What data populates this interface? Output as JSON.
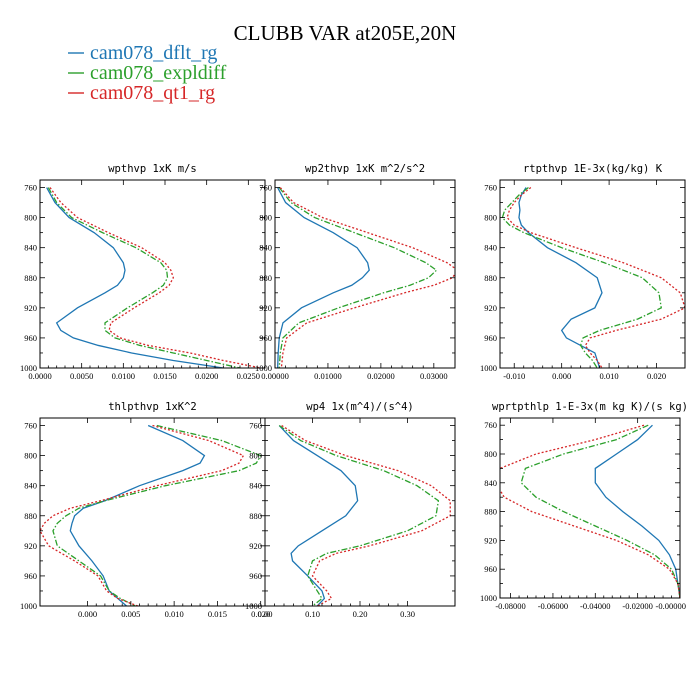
{
  "figure": {
    "title": "CLUBB VAR at205E,20N"
  },
  "legend": {
    "placement": "top-left",
    "entries": [
      {
        "name": "cam078_dflt_rg",
        "color": "#1f77b4",
        "style": "solid"
      },
      {
        "name": "cam078_expldiff",
        "color": "#2ca02c",
        "style": "dashdot"
      },
      {
        "name": "cam078_qt1_rg",
        "color": "#d62728",
        "style": "dotted"
      }
    ]
  },
  "chart_data": [
    {
      "type": "line",
      "title": "wpthvp  1xK m/s",
      "xlim": [
        0,
        0.027
      ],
      "ylim": [
        1000,
        750
      ],
      "xticks": [
        0,
        0.005,
        0.01,
        0.015,
        0.02,
        0.025
      ],
      "xtick_labels": [
        "0.0000",
        "0.0050",
        "0.0100",
        "0.0150",
        "0.0200",
        "0.0250"
      ],
      "yticks": [
        760,
        800,
        840,
        880,
        920,
        960,
        1000
      ],
      "ytick_labels": [
        "760",
        "800",
        "840",
        "880",
        "920",
        "960",
        "1000"
      ],
      "pressure": [
        760,
        780,
        800,
        820,
        840,
        860,
        870,
        880,
        890,
        900,
        920,
        940,
        950,
        960,
        970,
        980,
        990,
        1000
      ],
      "series": [
        {
          "name": "cam078_dflt_rg",
          "values": [
            0.0008,
            0.0018,
            0.0035,
            0.0065,
            0.0088,
            0.01,
            0.0102,
            0.01,
            0.0093,
            0.0078,
            0.0045,
            0.002,
            0.0025,
            0.004,
            0.007,
            0.011,
            0.016,
            0.022
          ]
        },
        {
          "name": "cam078_expldiff",
          "values": [
            0.001,
            0.002,
            0.0038,
            0.0075,
            0.0115,
            0.0145,
            0.0152,
            0.0153,
            0.0148,
            0.0135,
            0.0105,
            0.0078,
            0.0078,
            0.009,
            0.012,
            0.016,
            0.02,
            0.024
          ]
        },
        {
          "name": "cam078_qt1_rg",
          "values": [
            0.0012,
            0.0025,
            0.0045,
            0.0082,
            0.0122,
            0.015,
            0.0157,
            0.016,
            0.0155,
            0.0143,
            0.0113,
            0.0085,
            0.0083,
            0.0096,
            0.013,
            0.018,
            0.022,
            0.0265
          ]
        }
      ]
    },
    {
      "type": "line",
      "title": "wp2thvp  1xK m^2/s^2",
      "xlim": [
        0,
        0.034
      ],
      "ylim": [
        1000,
        750
      ],
      "xticks": [
        0,
        0.01,
        0.02,
        0.03
      ],
      "xtick_labels": [
        "0.00000",
        "0.01000",
        "0.02000",
        "0.03000"
      ],
      "yticks": [
        760,
        800,
        840,
        880,
        920,
        960,
        1000
      ],
      "ytick_labels": [
        "760",
        "800",
        "840",
        "880",
        "920",
        "960",
        "1000"
      ],
      "pressure": [
        760,
        780,
        800,
        820,
        840,
        860,
        870,
        880,
        890,
        900,
        920,
        940,
        960,
        980,
        1000
      ],
      "series": [
        {
          "name": "cam078_dflt_rg",
          "values": [
            0.0005,
            0.002,
            0.0055,
            0.011,
            0.0155,
            0.0175,
            0.0178,
            0.0165,
            0.0145,
            0.011,
            0.005,
            0.0015,
            0.0008,
            0.0006,
            0.0005
          ]
        },
        {
          "name": "cam078_expldiff",
          "values": [
            0.0008,
            0.003,
            0.0075,
            0.015,
            0.0225,
            0.0285,
            0.0305,
            0.029,
            0.0255,
            0.0205,
            0.012,
            0.0045,
            0.0015,
            0.001,
            0.0008
          ]
        },
        {
          "name": "cam078_qt1_rg",
          "values": [
            0.001,
            0.0035,
            0.009,
            0.0175,
            0.026,
            0.0325,
            0.0345,
            0.0335,
            0.03,
            0.0245,
            0.015,
            0.006,
            0.0022,
            0.0015,
            0.0012
          ]
        }
      ]
    },
    {
      "type": "line",
      "title": "rtpthvp  1E-3x(kg/kg) K",
      "xlim": [
        -0.013,
        0.026
      ],
      "ylim": [
        1000,
        750
      ],
      "xticks": [
        -0.01,
        0,
        0.01,
        0.02
      ],
      "xtick_labels": [
        "-0.010",
        "0.000",
        "0.010",
        "0.020"
      ],
      "yticks": [
        760,
        800,
        840,
        880,
        920,
        960,
        1000
      ],
      "ytick_labels": [
        "760",
        "800",
        "840",
        "880",
        "920",
        "960",
        "1000"
      ],
      "pressure": [
        760,
        770,
        780,
        790,
        800,
        810,
        820,
        840,
        860,
        880,
        900,
        920,
        935,
        950,
        960,
        970,
        980,
        990,
        1000
      ],
      "series": [
        {
          "name": "cam078_dflt_rg",
          "values": [
            -0.0075,
            -0.0085,
            -0.009,
            -0.0088,
            -0.009,
            -0.0085,
            -0.007,
            -0.003,
            0.003,
            0.0075,
            0.0085,
            0.007,
            0.002,
            0.0,
            0.001,
            0.004,
            0.007,
            0.0075,
            0.008
          ]
        },
        {
          "name": "cam078_expldiff",
          "values": [
            -0.007,
            -0.009,
            -0.0105,
            -0.012,
            -0.0125,
            -0.011,
            -0.008,
            0.0,
            0.009,
            0.017,
            0.0205,
            0.021,
            0.016,
            0.008,
            0.0045,
            0.004,
            0.005,
            0.0065,
            0.0075
          ]
        },
        {
          "name": "cam078_qt1_rg",
          "values": [
            -0.0065,
            -0.0085,
            -0.01,
            -0.011,
            -0.0115,
            -0.01,
            -0.0065,
            0.003,
            0.013,
            0.021,
            0.025,
            0.026,
            0.021,
            0.0115,
            0.006,
            0.005,
            0.006,
            0.0075,
            0.0085
          ]
        }
      ]
    },
    {
      "type": "line",
      "title": "thlpthvp  1xK^2",
      "xlim": [
        -0.0055,
        0.0205
      ],
      "ylim": [
        1000,
        750
      ],
      "xticks": [
        0,
        0.005,
        0.01,
        0.015,
        0.02
      ],
      "xtick_labels": [
        "0.000",
        "0.005",
        "0.010",
        "0.015",
        "0.020"
      ],
      "yticks": [
        760,
        800,
        840,
        880,
        920,
        960,
        1000
      ],
      "ytick_labels": [
        "760",
        "800",
        "840",
        "880",
        "920",
        "960",
        "1000"
      ],
      "pressure": [
        760,
        780,
        800,
        810,
        820,
        840,
        860,
        870,
        880,
        890,
        900,
        920,
        940,
        960,
        980,
        990,
        1000
      ],
      "series": [
        {
          "name": "cam078_dflt_rg",
          "values": [
            0.007,
            0.011,
            0.0135,
            0.013,
            0.011,
            0.006,
            0.002,
            -0.0005,
            -0.0015,
            -0.0018,
            -0.002,
            -0.001,
            0.0005,
            0.0018,
            0.0025,
            0.0035,
            0.0045
          ]
        },
        {
          "name": "cam078_expldiff",
          "values": [
            0.008,
            0.0155,
            0.02,
            0.0195,
            0.0175,
            0.009,
            0.002,
            -0.001,
            -0.0025,
            -0.0035,
            -0.004,
            -0.0035,
            -0.001,
            0.0015,
            0.0025,
            0.0038,
            0.0055
          ]
        },
        {
          "name": "cam078_qt1_rg",
          "values": [
            0.0075,
            0.014,
            0.018,
            0.0175,
            0.0155,
            0.008,
            0.0015,
            -0.002,
            -0.004,
            -0.005,
            -0.0055,
            -0.0045,
            -0.0015,
            0.0012,
            0.0022,
            0.0035,
            0.0058
          ]
        }
      ]
    },
    {
      "type": "line",
      "title": "wp4  1x(m^4)/(s^4)",
      "xlim": [
        0,
        0.4
      ],
      "ylim": [
        1000,
        750
      ],
      "xticks": [
        0,
        0.1,
        0.2,
        0.3
      ],
      "xtick_labels": [
        "0.00",
        "0.10",
        "0.20",
        "0.30"
      ],
      "yticks": [
        760,
        800,
        840,
        880,
        920,
        960,
        1000
      ],
      "ytick_labels": [
        "760",
        "800",
        "840",
        "880",
        "920",
        "960",
        "1000"
      ],
      "pressure": [
        760,
        780,
        800,
        820,
        840,
        860,
        880,
        900,
        920,
        930,
        940,
        960,
        980,
        990,
        1000
      ],
      "series": [
        {
          "name": "cam078_dflt_rg",
          "values": [
            0.03,
            0.06,
            0.11,
            0.16,
            0.19,
            0.195,
            0.17,
            0.12,
            0.07,
            0.055,
            0.058,
            0.09,
            0.12,
            0.125,
            0.11
          ]
        },
        {
          "name": "cam078_expldiff",
          "values": [
            0.03,
            0.075,
            0.15,
            0.25,
            0.32,
            0.365,
            0.36,
            0.3,
            0.2,
            0.13,
            0.1,
            0.09,
            0.11,
            0.12,
            0.1
          ]
        },
        {
          "name": "cam078_qt1_rg",
          "values": [
            0.035,
            0.085,
            0.17,
            0.28,
            0.35,
            0.39,
            0.39,
            0.33,
            0.22,
            0.15,
            0.115,
            0.1,
            0.13,
            0.14,
            0.11
          ]
        }
      ]
    },
    {
      "type": "line",
      "title": "wprtpthlp  1-E-3x(m kg K)/(s kg)",
      "xlim": [
        -0.085,
        0
      ],
      "ylim": [
        1000,
        750
      ],
      "xticks": [
        -0.08,
        -0.06,
        -0.04,
        -0.02,
        0
      ],
      "xtick_labels": [
        "-0.08000",
        "-0.06000",
        "-0.04000",
        "-0.02000",
        "-0.00000"
      ],
      "yticks": [
        760,
        800,
        840,
        880,
        920,
        960,
        1000
      ],
      "ytick_labels": [
        "760",
        "800",
        "840",
        "880",
        "920",
        "960",
        "1000"
      ],
      "pressure": [
        760,
        780,
        800,
        820,
        840,
        860,
        880,
        900,
        920,
        940,
        960,
        980,
        1000
      ],
      "series": [
        {
          "name": "cam078_dflt_rg",
          "values": [
            -0.013,
            -0.02,
            -0.03,
            -0.04,
            -0.04,
            -0.035,
            -0.027,
            -0.018,
            -0.01,
            -0.005,
            -0.002,
            -0.001,
            0.0
          ]
        },
        {
          "name": "cam078_expldiff",
          "values": [
            -0.015,
            -0.03,
            -0.055,
            -0.073,
            -0.075,
            -0.068,
            -0.055,
            -0.04,
            -0.025,
            -0.012,
            -0.004,
            -0.001,
            0.0
          ]
        },
        {
          "name": "cam078_qt1_rg",
          "values": [
            -0.017,
            -0.04,
            -0.068,
            -0.085,
            -0.087,
            -0.083,
            -0.07,
            -0.05,
            -0.03,
            -0.015,
            -0.005,
            -0.001,
            0.0
          ]
        }
      ]
    }
  ]
}
